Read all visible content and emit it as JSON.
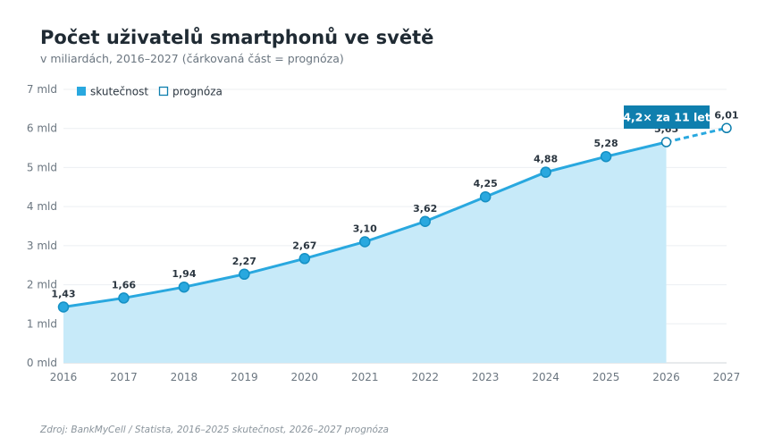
{
  "chart_data": {
    "type": "area",
    "title": "Počet uživatelů smartphonů ve světě",
    "subtitle": "v miliardách, 2016–2027 (čárkovaná část = prognóza)",
    "source": "Zdroj: BankMyCell / Statista, 2016–2025 skutečnost, 2026–2027 prognóza",
    "x": [
      2016,
      2017,
      2018,
      2019,
      2020,
      2021,
      2022,
      2023,
      2024,
      2025,
      2026,
      2027
    ],
    "series": [
      {
        "name": "skutečnost",
        "x": [
          2016,
          2017,
          2018,
          2019,
          2020,
          2021,
          2022,
          2023,
          2024,
          2025,
          2026
        ],
        "values": [
          1.43,
          1.66,
          1.94,
          2.27,
          2.67,
          3.1,
          3.62,
          4.25,
          4.88,
          5.28,
          5.65
        ]
      },
      {
        "name": "prognóza",
        "x": [
          2026,
          2027
        ],
        "values": [
          5.65,
          6.01
        ]
      }
    ],
    "data_labels": [
      "1,43",
      "1,66",
      "1,94",
      "2,27",
      "2,67",
      "3,10",
      "3,62",
      "4,25",
      "4,88",
      "5,28",
      "5,65",
      "6,01"
    ],
    "yticks": [
      0,
      1,
      2,
      3,
      4,
      5,
      6,
      7
    ],
    "ytick_labels": [
      "0 mld",
      "1 mld",
      "2 mld",
      "3 mld",
      "4 mld",
      "5 mld",
      "6 mld",
      "7 mld"
    ],
    "xtick_labels": [
      "2016",
      "2017",
      "2018",
      "2019",
      "2020",
      "2021",
      "2022",
      "2023",
      "2024",
      "2025",
      "2026",
      "2027"
    ],
    "ylim": [
      0,
      7
    ],
    "xlim": [
      2016,
      2027
    ],
    "grid": true,
    "legend_position": "top-left",
    "annotation": {
      "text": "4,2× za 11 let",
      "x": 2027,
      "y": 6.01
    },
    "colors": {
      "line": "#29a8df",
      "fill": "#c7eaf9",
      "marker": "#29a8df",
      "callout": "#0f7fae",
      "grid": "#eceff2"
    }
  }
}
